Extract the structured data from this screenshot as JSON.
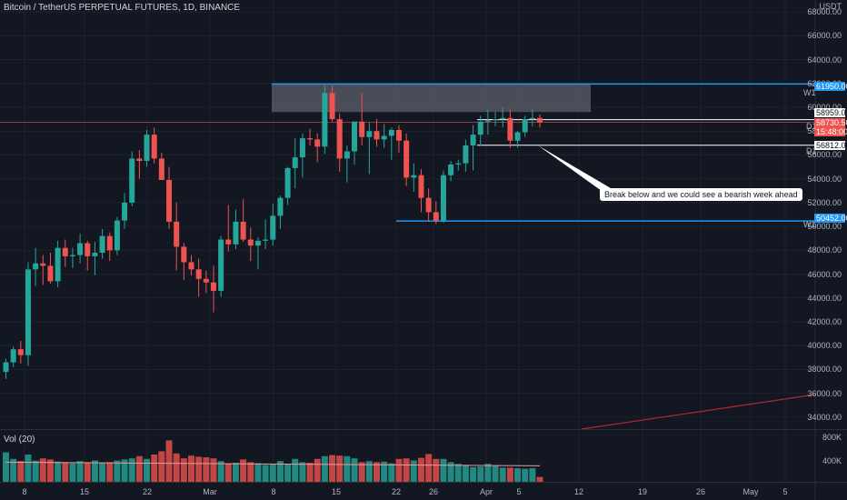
{
  "header": {
    "title": "Bitcoin / TetherUS PERPETUAL FUTURES, 1D, BINANCE",
    "currency": "USDT"
  },
  "volume_pane": {
    "label": "Vol (20)",
    "scale": [
      "800K",
      "400K"
    ]
  },
  "price_scale": [
    "68000.00",
    "66000.00",
    "64000.00",
    "62000.00",
    "60000.00",
    "58000.00",
    "56000.00",
    "54000.00",
    "52000.00",
    "50000.00",
    "48000.00",
    "46000.00",
    "44000.00",
    "42000.00",
    "40000.00",
    "38000.00",
    "36000.00",
    "34000.00"
  ],
  "time_scale": [
    "8",
    "15",
    "22",
    "Mar",
    "8",
    "15",
    "22",
    "26",
    "Apr",
    "5",
    "12",
    "19",
    "26",
    "May",
    "5"
  ],
  "price_labels": {
    "w1_upper": "61950.00",
    "d1_upper": "58959.00",
    "current": "58730.50",
    "countdown": "15:48:00",
    "d1_lower": "56812.00",
    "w1_lower": "50452.00"
  },
  "level_tags": {
    "w1": "W1",
    "d1": "D1"
  },
  "annotation": "Break below and we could see a bearish week ahead",
  "colors": {
    "up": "#26a69a",
    "down": "#ef5350",
    "w1_line": "#2196f3",
    "background": "#131722"
  },
  "chart_data": {
    "type": "candlestick",
    "title": "Bitcoin / TetherUS PERPETUAL FUTURES, 1D, BINANCE",
    "ylim": [
      33000,
      69000
    ],
    "levels": {
      "W1_upper": 61950,
      "D1_upper": 58959,
      "D1_lower": 56812,
      "W1_lower": 50452,
      "current": 58730.5
    },
    "resistance_zone": [
      59600,
      61950
    ],
    "candles": [
      {
        "o": 37800,
        "h": 38900,
        "l": 37200,
        "c": 38600
      },
      {
        "o": 38600,
        "h": 39900,
        "l": 38200,
        "c": 39700
      },
      {
        "o": 39700,
        "h": 40400,
        "l": 38500,
        "c": 39200
      },
      {
        "o": 39200,
        "h": 47000,
        "l": 38300,
        "c": 46400
      },
      {
        "o": 46400,
        "h": 48200,
        "l": 45000,
        "c": 46900
      },
      {
        "o": 46900,
        "h": 47600,
        "l": 45100,
        "c": 46700
      },
      {
        "o": 46700,
        "h": 47800,
        "l": 45200,
        "c": 45400
      },
      {
        "o": 45400,
        "h": 48800,
        "l": 44900,
        "c": 48200
      },
      {
        "o": 48200,
        "h": 48900,
        "l": 46600,
        "c": 47500
      },
      {
        "o": 47500,
        "h": 48200,
        "l": 46500,
        "c": 47600
      },
      {
        "o": 47600,
        "h": 49400,
        "l": 46900,
        "c": 48600
      },
      {
        "o": 48600,
        "h": 48800,
        "l": 46300,
        "c": 47500
      },
      {
        "o": 47500,
        "h": 48700,
        "l": 45900,
        "c": 47800
      },
      {
        "o": 47800,
        "h": 49800,
        "l": 47300,
        "c": 49200
      },
      {
        "o": 49200,
        "h": 49500,
        "l": 47100,
        "c": 48000
      },
      {
        "o": 48000,
        "h": 50800,
        "l": 47600,
        "c": 50500
      },
      {
        "o": 50500,
        "h": 52800,
        "l": 49800,
        "c": 52000
      },
      {
        "o": 52000,
        "h": 56300,
        "l": 51700,
        "c": 55700
      },
      {
        "o": 55700,
        "h": 56400,
        "l": 54000,
        "c": 55500
      },
      {
        "o": 55500,
        "h": 58100,
        "l": 55000,
        "c": 57700
      },
      {
        "o": 57700,
        "h": 58300,
        "l": 55300,
        "c": 55700
      },
      {
        "o": 55700,
        "h": 56200,
        "l": 53900,
        "c": 53900
      },
      {
        "o": 53900,
        "h": 55000,
        "l": 49800,
        "c": 50400
      },
      {
        "o": 50400,
        "h": 52000,
        "l": 46300,
        "c": 48300
      },
      {
        "o": 48300,
        "h": 48600,
        "l": 45500,
        "c": 47000
      },
      {
        "o": 47000,
        "h": 47600,
        "l": 45900,
        "c": 46400
      },
      {
        "o": 46400,
        "h": 47300,
        "l": 44100,
        "c": 45600
      },
      {
        "o": 45600,
        "h": 46300,
        "l": 44400,
        "c": 45300
      },
      {
        "o": 45300,
        "h": 46700,
        "l": 42800,
        "c": 44600
      },
      {
        "o": 44600,
        "h": 49200,
        "l": 44100,
        "c": 48900
      },
      {
        "o": 48900,
        "h": 51800,
        "l": 47900,
        "c": 48500
      },
      {
        "o": 48500,
        "h": 51400,
        "l": 48100,
        "c": 50400
      },
      {
        "o": 50400,
        "h": 52300,
        "l": 48700,
        "c": 48900
      },
      {
        "o": 48900,
        "h": 49900,
        "l": 47100,
        "c": 48400
      },
      {
        "o": 48400,
        "h": 49100,
        "l": 46400,
        "c": 48800
      },
      {
        "o": 48800,
        "h": 50600,
        "l": 48100,
        "c": 48900
      },
      {
        "o": 48900,
        "h": 51900,
        "l": 48400,
        "c": 50900
      },
      {
        "o": 50900,
        "h": 52600,
        "l": 49800,
        "c": 52400
      },
      {
        "o": 52400,
        "h": 55000,
        "l": 51800,
        "c": 54900
      },
      {
        "o": 54900,
        "h": 57400,
        "l": 53200,
        "c": 55800
      },
      {
        "o": 55800,
        "h": 57800,
        "l": 54100,
        "c": 57400
      },
      {
        "o": 57400,
        "h": 58200,
        "l": 56800,
        "c": 57300
      },
      {
        "o": 57300,
        "h": 57800,
        "l": 55400,
        "c": 56700
      },
      {
        "o": 56700,
        "h": 61800,
        "l": 56100,
        "c": 61200
      },
      {
        "o": 61200,
        "h": 61800,
        "l": 58800,
        "c": 59000
      },
      {
        "o": 59000,
        "h": 59500,
        "l": 54600,
        "c": 55700
      },
      {
        "o": 55700,
        "h": 56800,
        "l": 53700,
        "c": 56300
      },
      {
        "o": 56300,
        "h": 58800,
        "l": 55200,
        "c": 58800
      },
      {
        "o": 58800,
        "h": 61200,
        "l": 56800,
        "c": 57500
      },
      {
        "o": 57500,
        "h": 58700,
        "l": 54400,
        "c": 58000
      },
      {
        "o": 58000,
        "h": 59000,
        "l": 56700,
        "c": 57300
      },
      {
        "o": 57300,
        "h": 58600,
        "l": 56600,
        "c": 57600
      },
      {
        "o": 57600,
        "h": 58300,
        "l": 55600,
        "c": 58100
      },
      {
        "o": 58100,
        "h": 58500,
        "l": 56200,
        "c": 57200
      },
      {
        "o": 57200,
        "h": 57800,
        "l": 53400,
        "c": 54100
      },
      {
        "o": 54100,
        "h": 55300,
        "l": 52900,
        "c": 54300
      },
      {
        "o": 54300,
        "h": 54800,
        "l": 51200,
        "c": 52400
      },
      {
        "o": 52400,
        "h": 53200,
        "l": 50400,
        "c": 51200
      },
      {
        "o": 51200,
        "h": 52100,
        "l": 50200,
        "c": 50500
      },
      {
        "o": 50500,
        "h": 54700,
        "l": 50300,
        "c": 54300
      },
      {
        "o": 54300,
        "h": 55500,
        "l": 53800,
        "c": 55200
      },
      {
        "o": 55200,
        "h": 55600,
        "l": 54700,
        "c": 55300
      },
      {
        "o": 55300,
        "h": 57300,
        "l": 54600,
        "c": 56800
      },
      {
        "o": 56800,
        "h": 58500,
        "l": 54700,
        "c": 57700
      },
      {
        "o": 57700,
        "h": 59300,
        "l": 56800,
        "c": 58800
      },
      {
        "o": 58800,
        "h": 59800,
        "l": 57700,
        "c": 58900
      },
      {
        "o": 58900,
        "h": 59600,
        "l": 58400,
        "c": 59000
      },
      {
        "o": 59000,
        "h": 60000,
        "l": 58300,
        "c": 59100
      },
      {
        "o": 59100,
        "h": 59800,
        "l": 56600,
        "c": 57200
      },
      {
        "o": 57200,
        "h": 58000,
        "l": 56600,
        "c": 57900
      },
      {
        "o": 57900,
        "h": 59300,
        "l": 57500,
        "c": 59000
      },
      {
        "o": 59000,
        "h": 59800,
        "l": 58400,
        "c": 59100
      },
      {
        "o": 59100,
        "h": 59400,
        "l": 58300,
        "c": 58730
      }
    ],
    "volume": [
      540,
      420,
      380,
      500,
      390,
      430,
      410,
      370,
      360,
      340,
      380,
      360,
      390,
      350,
      360,
      390,
      410,
      430,
      470,
      420,
      500,
      560,
      760,
      520,
      430,
      480,
      460,
      450,
      430,
      380,
      330,
      350,
      410,
      360,
      340,
      310,
      320,
      380,
      330,
      420,
      360,
      350,
      420,
      470,
      490,
      480,
      470,
      430,
      360,
      380,
      360,
      370,
      340,
      420,
      430,
      390,
      440,
      510,
      420,
      420,
      360,
      330,
      310,
      270,
      280,
      330,
      290,
      260,
      260,
      250,
      240,
      250,
      90
    ],
    "volume_ma": 360,
    "ylim_volume": [
      0,
      950
    ]
  }
}
